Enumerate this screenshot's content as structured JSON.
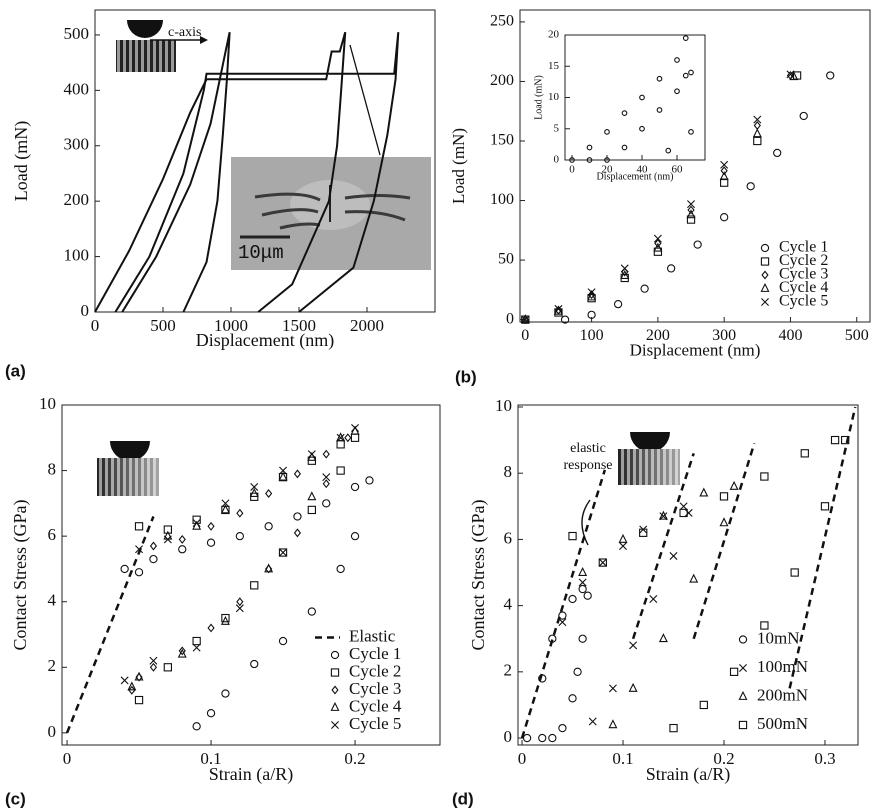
{
  "chart_data": [
    {
      "type": "line",
      "panel_label": "(a)",
      "xlabel": "Displacement (nm)",
      "ylabel": "Load (mN)",
      "annotations": [
        "c-axis",
        "10μm"
      ],
      "color": "#111",
      "xlim": [
        0,
        2500
      ],
      "ylim": [
        0,
        545
      ],
      "xticks": [
        0,
        500,
        1000,
        1500,
        2000
      ],
      "yticks": [
        0,
        100,
        200,
        300,
        400,
        500
      ],
      "series": [
        {
          "x": [
            0,
            250,
            500,
            700,
            820,
            1700,
            1740,
            1800,
            1840,
            1810,
            1780,
            1720,
            1450,
            1200
          ],
          "values": [
            0,
            110,
            240,
            360,
            420,
            420,
            470,
            470,
            505,
            400,
            300,
            200,
            50,
            0
          ]
        },
        {
          "x": [
            150,
            400,
            650,
            800,
            820,
            2200,
            2230,
            2210,
            2150,
            2050,
            1900,
            1500
          ],
          "values": [
            0,
            100,
            250,
            400,
            430,
            430,
            505,
            420,
            320,
            200,
            80,
            0
          ]
        },
        {
          "x": [
            200,
            450,
            700,
            850,
            960,
            990,
            970,
            940,
            900,
            820,
            650
          ],
          "values": [
            0,
            100,
            230,
            340,
            470,
            505,
            420,
            320,
            200,
            90,
            0
          ]
        }
      ]
    },
    {
      "type": "scatter",
      "panel_label": "(b)",
      "xlabel": "Displacement (nm)",
      "ylabel": "Load (mN)",
      "legend": "lower right",
      "color": "#111",
      "xlim": [
        -8,
        520
      ],
      "ylim": [
        -2,
        260
      ],
      "xticks": [
        0,
        100,
        200,
        300,
        400,
        500
      ],
      "yticks": [
        0,
        50,
        100,
        150,
        200,
        250
      ],
      "series": [
        {
          "name": "Cycle 1",
          "marker": "circle",
          "x": [
            60,
            100,
            140,
            180,
            220,
            260,
            300,
            340,
            380,
            420,
            460
          ],
          "values": [
            0,
            4,
            13,
            26,
            43,
            63,
            86,
            112,
            140,
            171,
            205
          ]
        },
        {
          "name": "Cycle 2",
          "marker": "square",
          "x": [
            0,
            50,
            100,
            150,
            200,
            250,
            300,
            350,
            410
          ],
          "values": [
            0,
            6,
            18,
            35,
            57,
            84,
            115,
            150,
            205
          ]
        },
        {
          "name": "Cycle 3",
          "marker": "diamond",
          "x": [
            0,
            50,
            100,
            150,
            200,
            250,
            300,
            350,
            400
          ],
          "values": [
            0,
            8,
            21,
            40,
            64,
            92,
            125,
            163,
            205
          ]
        },
        {
          "name": "Cycle 4",
          "marker": "triangle",
          "x": [
            0,
            50,
            100,
            150,
            200,
            250,
            300,
            350,
            405
          ],
          "values": [
            0,
            7,
            19,
            37,
            60,
            88,
            120,
            156,
            204
          ]
        },
        {
          "name": "Cycle 5",
          "marker": "x",
          "x": [
            0,
            50,
            100,
            150,
            200,
            250,
            300,
            350,
            400
          ],
          "values": [
            0,
            9,
            23,
            43,
            68,
            97,
            130,
            168,
            206
          ]
        }
      ]
    },
    {
      "type": "scatter",
      "xlabel": "Displacement (nm)",
      "ylabel": "Load (mN)",
      "color": "#111",
      "xlim": [
        -4,
        76
      ],
      "ylim": [
        0,
        20
      ],
      "xticks": [
        0,
        20,
        40,
        60
      ],
      "yticks": [
        0,
        5,
        10,
        15,
        20
      ],
      "series": [
        {
          "marker": "circle",
          "x": [
            0,
            10,
            20,
            30,
            40,
            50,
            60,
            65
          ],
          "values": [
            0,
            2,
            4.5,
            7.5,
            10,
            13,
            16,
            19.5
          ]
        },
        {
          "marker": "circle",
          "x": [
            20,
            30,
            40,
            50,
            60,
            65,
            68
          ],
          "values": [
            0,
            2,
            5,
            8,
            11,
            13.5,
            14
          ]
        },
        {
          "marker": "circle",
          "x": [
            10,
            55,
            68
          ],
          "values": [
            0,
            1.5,
            4.5
          ]
        }
      ]
    },
    {
      "type": "scatter",
      "panel_label": "(c)",
      "xlabel": "Strain (a/R)",
      "ylabel": "Contact Stress (GPa)",
      "legend": "lower right",
      "color": "#111",
      "xlim": [
        -0.0035,
        0.259
      ],
      "ylim": [
        -0.37,
        10
      ],
      "xticks": [
        0,
        0.1,
        0.2
      ],
      "yticks": [
        0,
        2,
        4,
        6,
        8,
        10
      ],
      "series": [
        {
          "name": "Elastic",
          "dash": true,
          "x": [
            0,
            0.06
          ],
          "values": [
            0,
            6.6
          ]
        },
        {
          "name": "Cycle 1",
          "marker": "circle",
          "x": [
            0.04,
            0.05,
            0.06,
            0.08,
            0.1,
            0.12,
            0.14,
            0.16,
            0.18,
            0.2,
            0.21,
            0.2,
            0.19,
            0.17,
            0.15,
            0.13,
            0.11,
            0.1,
            0.09
          ],
          "values": [
            5.0,
            4.9,
            5.3,
            5.6,
            5.8,
            6.0,
            6.3,
            6.6,
            7.0,
            7.5,
            7.7,
            6.0,
            5.0,
            3.7,
            2.8,
            2.1,
            1.2,
            0.6,
            0.2
          ]
        },
        {
          "name": "Cycle 2",
          "marker": "square",
          "x": [
            0.05,
            0.07,
            0.09,
            0.11,
            0.13,
            0.15,
            0.17,
            0.19,
            0.2,
            0.19,
            0.17,
            0.15,
            0.13,
            0.11,
            0.09,
            0.07,
            0.05
          ],
          "values": [
            6.3,
            6.2,
            6.5,
            6.8,
            7.2,
            7.8,
            8.3,
            8.8,
            9.0,
            8.0,
            6.8,
            5.5,
            4.5,
            3.5,
            2.8,
            2.0,
            1.0
          ]
        },
        {
          "name": "Cycle 3",
          "marker": "diamond",
          "x": [
            0.045,
            0.06,
            0.08,
            0.1,
            0.12,
            0.14,
            0.16,
            0.18,
            0.195,
            0.18,
            0.16,
            0.14,
            0.12,
            0.1,
            0.08,
            0.06,
            0.05
          ],
          "values": [
            1.3,
            5.7,
            5.9,
            6.3,
            6.7,
            7.3,
            7.9,
            8.5,
            9.0,
            7.6,
            6.1,
            5.0,
            4.0,
            3.2,
            2.5,
            2.0,
            1.7
          ]
        },
        {
          "name": "Cycle 4",
          "marker": "triangle",
          "x": [
            0.045,
            0.07,
            0.09,
            0.11,
            0.13,
            0.15,
            0.17,
            0.19,
            0.2,
            0.17,
            0.14,
            0.11,
            0.08,
            0.05
          ],
          "values": [
            1.4,
            6.0,
            6.3,
            6.8,
            7.3,
            7.8,
            8.4,
            9.0,
            9.2,
            7.2,
            5.0,
            3.4,
            2.4,
            1.7
          ]
        },
        {
          "name": "Cycle 5",
          "marker": "x",
          "x": [
            0.04,
            0.05,
            0.07,
            0.09,
            0.11,
            0.13,
            0.15,
            0.17,
            0.19,
            0.2,
            0.18,
            0.15,
            0.12,
            0.09,
            0.06
          ],
          "values": [
            1.6,
            5.6,
            5.9,
            6.4,
            7.0,
            7.5,
            8.0,
            8.5,
            9.0,
            9.3,
            7.8,
            5.5,
            3.8,
            2.6,
            2.2
          ]
        }
      ]
    },
    {
      "type": "scatter",
      "panel_label": "(d)",
      "xlabel": "Strain (a/R)",
      "ylabel": "Contact Stress (GPa)",
      "legend": "lower right",
      "annotations": [
        "elastic response"
      ],
      "color": "#111",
      "xlim": [
        -0.004,
        0.3327
      ],
      "ylim": [
        -0.21,
        10.06
      ],
      "xticks": [
        0,
        0.1,
        0.2,
        0.3
      ],
      "yticks": [
        0,
        2,
        4,
        6,
        8,
        10
      ],
      "series": [
        {
          "name": "10mN",
          "marker": "circle",
          "x": [
            0.005,
            0.02,
            0.03,
            0.04,
            0.05,
            0.06,
            0.065,
            0.06,
            0.055,
            0.05,
            0.04,
            0.03,
            0.02
          ],
          "values": [
            0,
            1.8,
            3.0,
            3.7,
            4.2,
            4.5,
            4.3,
            3.0,
            2.0,
            1.2,
            0.3,
            0,
            0
          ]
        },
        {
          "name": "100mN",
          "marker": "x",
          "x": [
            0.04,
            0.06,
            0.08,
            0.1,
            0.12,
            0.14,
            0.16,
            0.165,
            0.15,
            0.13,
            0.11,
            0.09,
            0.07
          ],
          "values": [
            3.5,
            4.7,
            5.3,
            5.8,
            6.3,
            6.7,
            7.0,
            6.8,
            5.5,
            4.2,
            2.8,
            1.5,
            0.5
          ]
        },
        {
          "name": "200mN",
          "marker": "triangle",
          "x": [
            0.06,
            0.1,
            0.14,
            0.18,
            0.21,
            0.2,
            0.17,
            0.14,
            0.11,
            0.09
          ],
          "values": [
            5.0,
            6.0,
            6.7,
            7.4,
            7.6,
            6.5,
            4.8,
            3.0,
            1.5,
            0.4
          ]
        },
        {
          "name": "500mN",
          "marker": "square",
          "x": [
            0.05,
            0.08,
            0.12,
            0.16,
            0.2,
            0.24,
            0.28,
            0.31,
            0.32,
            0.3,
            0.27,
            0.24,
            0.21,
            0.18,
            0.15
          ],
          "values": [
            6.1,
            5.3,
            6.2,
            6.8,
            7.3,
            7.9,
            8.6,
            9.0,
            9.0,
            7.0,
            5.0,
            3.4,
            2.0,
            1.0,
            0.3
          ]
        },
        {
          "dash": true,
          "x": [
            0,
            0.082
          ],
          "values": [
            0,
            8.1
          ]
        },
        {
          "dash": true,
          "x": [
            0.11,
            0.17
          ],
          "values": [
            3.0,
            8.6
          ]
        },
        {
          "dash": true,
          "x": [
            0.17,
            0.23
          ],
          "values": [
            3.0,
            8.9
          ]
        },
        {
          "dash": true,
          "x": [
            0.265,
            0.33
          ],
          "values": [
            1.5,
            10
          ]
        }
      ]
    }
  ]
}
